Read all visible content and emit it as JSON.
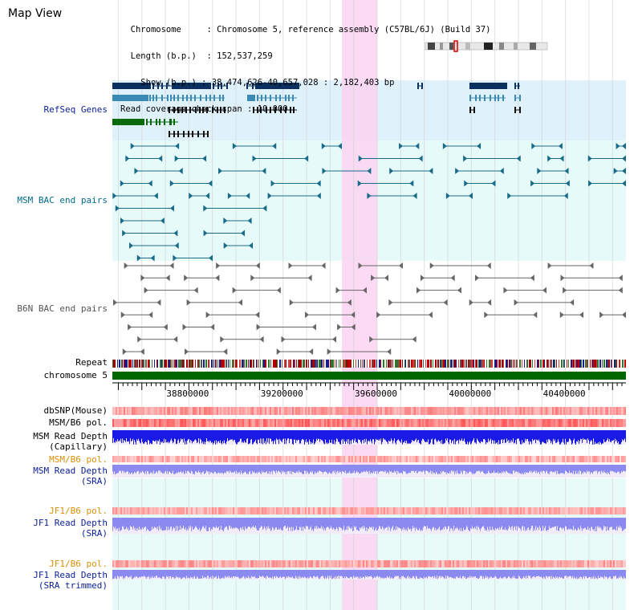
{
  "view_title": "Map View",
  "info": {
    "chromosome_key": "Chromosome",
    "chromosome_value": "Chromosome 5, reference assembly (C57BL/6J) (Build 37)",
    "length_key": "Length (b.p.)",
    "length_value": "152,537,259",
    "show_key": "Show (b.p.)",
    "show_value": "38,474,626-40,657,028 : 2,182,403 bp",
    "coverage_key": "Read coverage check span",
    "coverage_value": "10,000"
  },
  "tracks": {
    "refseq": "RefSeq Genes",
    "msm_bac": "MSM BAC end pairs",
    "b6n_bac": "B6N BAC end pairs",
    "repeat": "Repeat",
    "chromosome": "chromosome 5",
    "dbsnp": "dbSNP(Mouse)",
    "msm_b6_pol_1": "MSM/B6 pol.",
    "msm_depth_cap_1": "MSM Read Depth",
    "msm_depth_cap_2": "(Capillary)",
    "msm_b6_pol_2": "MSM/B6 pol.",
    "msm_depth_sra_1": "MSM Read Depth",
    "msm_depth_sra_2": "(SRA)",
    "jf1_b6_pol_1": "JF1/B6 pol.",
    "jf1_depth_sra_1": "JF1 Read Depth",
    "jf1_depth_sra_2": "(SRA)",
    "jf1_b6_pol_2": "JF1/B6 pol.",
    "jf1_depth_trim_1": "JF1 Read Depth",
    "jf1_depth_trim_2": "(SRA trimmed)"
  },
  "axis": {
    "ticks": [
      "38800000",
      "39200000",
      "39600000",
      "40000000",
      "40400000"
    ],
    "tick_values": [
      38800000,
      39200000,
      39600000,
      40000000,
      40400000
    ],
    "range": [
      38474626,
      40657028
    ],
    "highlight_range": [
      39450000,
      39600000
    ]
  },
  "colors": {
    "refseq_bg": "#dff1fb",
    "msm_bg": "#e6fafa",
    "lower_bg": "#e9fbf9",
    "highlight": "#fbd3f1",
    "chromosome_bar": "#006600",
    "depth_blue": "#1a1ae6",
    "depth_sra": "#8a8af0",
    "pol_red": "#f05050"
  }
}
